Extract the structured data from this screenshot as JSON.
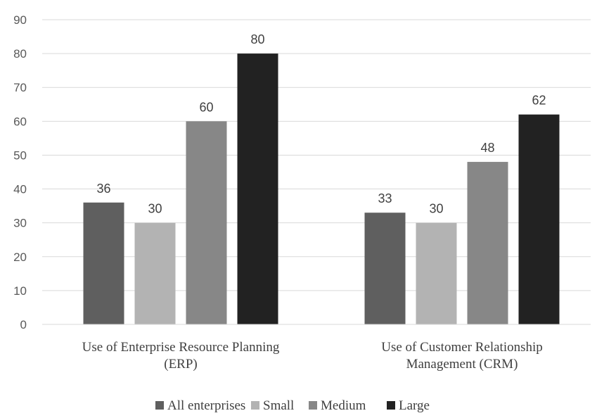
{
  "chart_data": {
    "type": "bar",
    "categories": [
      [
        "Use of Enterprise Resource Planning",
        "(ERP)"
      ],
      [
        "Use of Customer Relationship",
        "Management (CRM)"
      ]
    ],
    "series": [
      {
        "name": "All enterprises",
        "values": [
          36,
          33
        ],
        "color": "#5f5f5f"
      },
      {
        "name": "Small",
        "values": [
          30,
          30
        ],
        "color": "#b3b3b3"
      },
      {
        "name": "Medium",
        "values": [
          60,
          48
        ],
        "color": "#878787"
      },
      {
        "name": "Large",
        "values": [
          80,
          62
        ],
        "color": "#222222"
      }
    ],
    "ylim": [
      0,
      90
    ],
    "yticks": [
      0,
      10,
      20,
      30,
      40,
      50,
      60,
      70,
      80,
      90
    ],
    "grid": true,
    "legend": "bottom",
    "data_labels": true
  }
}
